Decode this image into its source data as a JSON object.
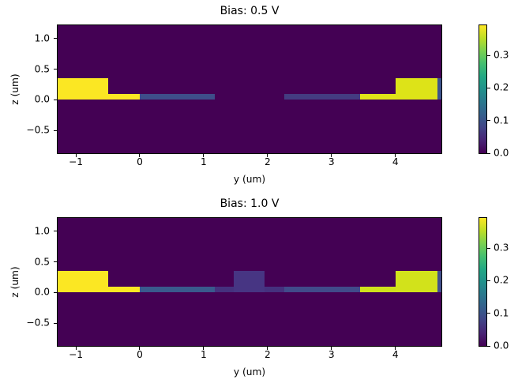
{
  "figure": {
    "background": "#ffffff",
    "colormap": "viridis",
    "colormap_stops": [
      "#440154",
      "#482475",
      "#414487",
      "#355f8d",
      "#2a788e",
      "#21918c",
      "#22a884",
      "#44bf70",
      "#7ad151",
      "#bddf26",
      "#fde725"
    ]
  },
  "chart_data": [
    {
      "type": "heatmap",
      "title": "Bias: 0.5 V",
      "xlabel": "y (um)",
      "ylabel": "z (um)",
      "xlim": [
        -1.285,
        4.72
      ],
      "ylim": [
        -0.872,
        1.218
      ],
      "xticks": [
        -1,
        0,
        1,
        2,
        3,
        4
      ],
      "xtick_labels": [
        "−1",
        "0",
        "1",
        "2",
        "3",
        "4"
      ],
      "yticks": [
        1.0,
        0.5,
        0.0,
        -0.5
      ],
      "ytick_labels": [
        "1.0",
        "0.5",
        "0.0",
        "−0.5"
      ],
      "background_value": 0.0,
      "background_color": "#440154",
      "cells": [
        {
          "x0": -1.285,
          "x1": -0.5,
          "z0": 0.0,
          "z1": 0.35,
          "value": 0.39,
          "color": "#fbe723"
        },
        {
          "x0": -0.5,
          "x1": 0.0,
          "z0": 0.0,
          "z1": 0.1,
          "value": 0.39,
          "color": "#fbe723"
        },
        {
          "x0": 0.0,
          "x1": 1.17,
          "z0": 0.0,
          "z1": 0.1,
          "value": 0.1,
          "color": "#3e4e8a"
        },
        {
          "x0": 2.26,
          "x1": 3.45,
          "z0": 0.0,
          "z1": 0.1,
          "value": 0.06,
          "color": "#443c81"
        },
        {
          "x0": 3.45,
          "x1": 4.0,
          "z0": 0.0,
          "z1": 0.1,
          "value": 0.37,
          "color": "#e0e418"
        },
        {
          "x0": 4.0,
          "x1": 4.655,
          "z0": 0.0,
          "z1": 0.35,
          "value": 0.37,
          "color": "#dde318"
        },
        {
          "x0": 4.655,
          "x1": 4.72,
          "z0": 0.0,
          "z1": 0.35,
          "value": 0.11,
          "color": "#3d538b"
        }
      ],
      "colorbar": {
        "vmin": 0.0,
        "vmax": 0.392,
        "tick_values": [
          0.0,
          0.1,
          0.2,
          0.3
        ],
        "tick_labels": [
          "0.0",
          "0.1",
          "0.2",
          "0.3"
        ]
      }
    },
    {
      "type": "heatmap",
      "title": "Bias: 1.0 V",
      "xlabel": "y (um)",
      "ylabel": "z (um)",
      "xlim": [
        -1.285,
        4.72
      ],
      "ylim": [
        -0.872,
        1.218
      ],
      "xticks": [
        -1,
        0,
        1,
        2,
        3,
        4
      ],
      "xtick_labels": [
        "−1",
        "0",
        "1",
        "2",
        "3",
        "4"
      ],
      "yticks": [
        1.0,
        0.5,
        0.0,
        -0.5
      ],
      "ytick_labels": [
        "1.0",
        "0.5",
        "0.0",
        "−0.5"
      ],
      "background_value": 0.0,
      "background_color": "#440154",
      "cells": [
        {
          "x0": -1.285,
          "x1": -0.5,
          "z0": 0.0,
          "z1": 0.35,
          "value": 0.39,
          "color": "#fbe723"
        },
        {
          "x0": -0.5,
          "x1": 0.0,
          "z0": 0.0,
          "z1": 0.1,
          "value": 0.39,
          "color": "#fbe723"
        },
        {
          "x0": 0.0,
          "x1": 1.17,
          "z0": 0.0,
          "z1": 0.1,
          "value": 0.13,
          "color": "#3a5a8d"
        },
        {
          "x0": 1.17,
          "x1": 2.26,
          "z0": 0.0,
          "z1": 0.1,
          "value": 0.05,
          "color": "#45317e"
        },
        {
          "x0": 1.47,
          "x1": 1.95,
          "z0": 0.0,
          "z1": 0.35,
          "value": 0.06,
          "color": "#473583"
        },
        {
          "x0": 2.26,
          "x1": 3.45,
          "z0": 0.0,
          "z1": 0.1,
          "value": 0.1,
          "color": "#414b8a"
        },
        {
          "x0": 3.45,
          "x1": 4.0,
          "z0": 0.0,
          "z1": 0.1,
          "value": 0.36,
          "color": "#cfe11c"
        },
        {
          "x0": 4.0,
          "x1": 4.655,
          "z0": 0.0,
          "z1": 0.35,
          "value": 0.36,
          "color": "#d2e21b"
        },
        {
          "x0": 4.655,
          "x1": 4.72,
          "z0": 0.0,
          "z1": 0.35,
          "value": 0.12,
          "color": "#42508b"
        }
      ],
      "colorbar": {
        "vmin": 0.0,
        "vmax": 0.392,
        "tick_values": [
          0.0,
          0.1,
          0.2,
          0.3
        ],
        "tick_labels": [
          "0.0",
          "0.1",
          "0.2",
          "0.3"
        ]
      }
    }
  ]
}
